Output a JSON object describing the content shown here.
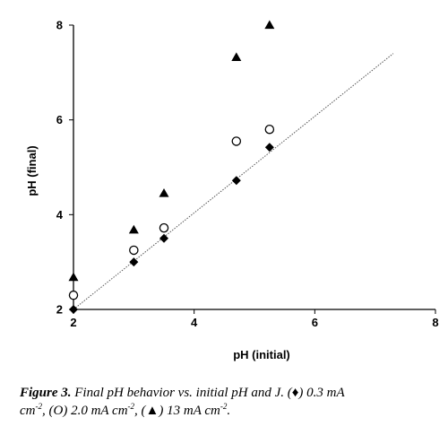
{
  "chart_data": {
    "type": "scatter",
    "xlabel": "pH (initial)",
    "ylabel": "pH (final)",
    "xlim": [
      2,
      8
    ],
    "ylim": [
      2,
      8
    ],
    "x_ticks": [
      "2",
      "4",
      "6",
      "8"
    ],
    "y_ticks": [
      "2",
      "4",
      "6",
      "8"
    ],
    "grid": false,
    "legend": "none",
    "series": [
      {
        "marker": "diamond-filled",
        "color": "#000000",
        "points": [
          [
            2.0,
            2.0
          ],
          [
            3.0,
            3.0
          ],
          [
            3.5,
            3.5
          ],
          [
            4.7,
            4.72
          ],
          [
            5.25,
            5.42
          ]
        ]
      },
      {
        "marker": "circle-open",
        "color": "#000000",
        "points": [
          [
            2.0,
            2.3
          ],
          [
            3.0,
            3.25
          ],
          [
            3.5,
            3.72
          ],
          [
            4.7,
            5.55
          ],
          [
            5.25,
            5.8
          ]
        ]
      },
      {
        "marker": "triangle-filled",
        "color": "#000000",
        "points": [
          [
            2.0,
            2.68
          ],
          [
            3.0,
            3.68
          ],
          [
            3.5,
            4.45
          ],
          [
            4.7,
            7.32
          ],
          [
            5.25,
            8.0
          ]
        ]
      }
    ],
    "reference_line": {
      "style": "dotted",
      "color": "#555555",
      "from": [
        2.0,
        2.0
      ],
      "to": [
        7.3,
        7.4
      ]
    }
  },
  "caption": {
    "label": "Figure 3.",
    "line1": "Final pH behavior vs. initial pH and J. (♦) 0.3 mA",
    "line2_a": "cm",
    "line2_sup1": "-2",
    "line2_b": ", (O) 2.0 mA cm",
    "line2_sup2": "-2",
    "line2_c": ", (▲) 13 mA cm",
    "line2_sup3": "-2",
    "line2_d": "."
  }
}
